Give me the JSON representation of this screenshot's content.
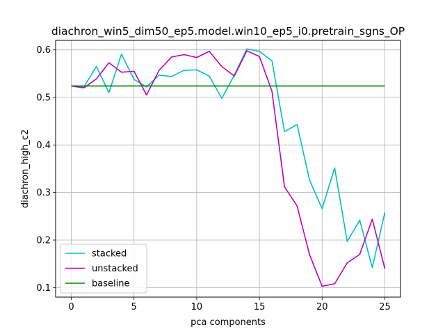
{
  "chart_data": {
    "type": "line",
    "title": "diachron_win5_dim50_ep5.model.win10_ep5_i0.pretrain_sgns_OP",
    "xlabel": "pca components",
    "ylabel": "diachron_high_c2",
    "xlim": [
      -1.25,
      26.25
    ],
    "ylim": [
      0.08,
      0.62
    ],
    "xticks": [
      0,
      5,
      10,
      15,
      20,
      25
    ],
    "yticks": [
      0.1,
      0.2,
      0.3,
      0.4,
      0.5,
      0.6
    ],
    "ytick_labels": [
      "0.1",
      "0.2",
      "0.3",
      "0.4",
      "0.5",
      "0.6"
    ],
    "grid": true,
    "legend_position": "lower-left",
    "x": [
      0,
      1,
      2,
      3,
      4,
      5,
      6,
      7,
      8,
      9,
      10,
      11,
      12,
      13,
      14,
      15,
      16,
      17,
      18,
      19,
      20,
      21,
      22,
      23,
      24,
      25
    ],
    "series": [
      {
        "name": "stacked",
        "color": "#00bfbf",
        "values": [
          0.524,
          0.522,
          0.565,
          0.51,
          0.591,
          0.538,
          0.522,
          0.547,
          0.544,
          0.557,
          0.558,
          0.545,
          0.498,
          0.547,
          0.602,
          0.597,
          0.577,
          0.428,
          0.443,
          0.326,
          0.266,
          0.352,
          0.197,
          0.242,
          0.142,
          0.258
        ]
      },
      {
        "name": "unstacked",
        "color": "#bf00bf",
        "values": [
          0.524,
          0.52,
          0.539,
          0.573,
          0.553,
          0.555,
          0.505,
          0.557,
          0.585,
          0.59,
          0.584,
          0.597,
          0.565,
          0.545,
          0.598,
          0.586,
          0.513,
          0.312,
          0.272,
          0.169,
          0.103,
          0.108,
          0.152,
          0.17,
          0.244,
          0.14
        ]
      },
      {
        "name": "baseline",
        "color": "#008000",
        "values": [
          0.524,
          0.524,
          0.524,
          0.524,
          0.524,
          0.524,
          0.524,
          0.524,
          0.524,
          0.524,
          0.524,
          0.524,
          0.524,
          0.524,
          0.524,
          0.524,
          0.524,
          0.524,
          0.524,
          0.524,
          0.524,
          0.524,
          0.524,
          0.524,
          0.524,
          0.524
        ]
      }
    ]
  }
}
